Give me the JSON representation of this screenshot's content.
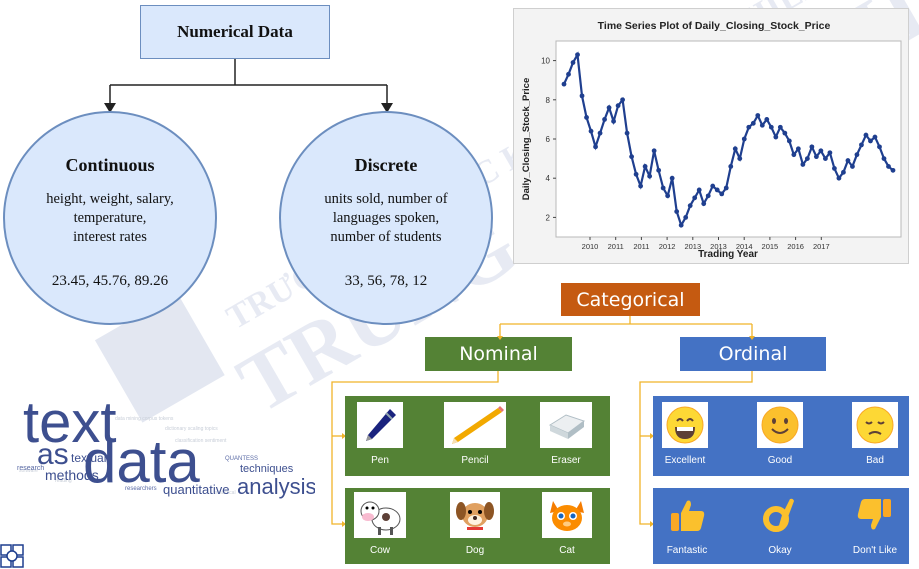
{
  "numerical": {
    "title": "Numerical Data",
    "continuous": {
      "title": "Continuous",
      "description": "height, weight, salary, temperature, interest rates",
      "desc_lines": [
        "height, weight, salary,",
        "temperature,",
        "interest rates"
      ],
      "values": "23.45, 45.76, 89.26"
    },
    "discrete": {
      "title": "Discrete",
      "description": "units sold, number of languages spoken, number of students",
      "desc_lines": [
        "units sold, number of",
        "languages spoken,",
        "number of students"
      ],
      "values": "33, 56, 78, 12"
    }
  },
  "chart_data": {
    "type": "line",
    "title": "Time Series Plot of Daily_Closing_Stock_Price",
    "xlabel": "Trading Year",
    "ylabel": "Daily_Closing_Stock_Price",
    "x_tick_labels": [
      "2010",
      "2011",
      "2011",
      "2012",
      "2013",
      "2013",
      "2014",
      "2015",
      "2016",
      "2017"
    ],
    "y_ticks": [
      2,
      4,
      6,
      8,
      10
    ],
    "ylim": [
      1,
      11
    ],
    "grid": false,
    "marker": "filled-circle",
    "series": [
      {
        "color": "#1f3f8f",
        "values": [
          8.8,
          9.3,
          9.9,
          10.3,
          8.2,
          7.1,
          6.4,
          5.6,
          6.3,
          7.0,
          7.6,
          6.9,
          7.7,
          8.0,
          6.3,
          5.1,
          4.2,
          3.6,
          4.6,
          4.1,
          5.4,
          4.4,
          3.5,
          3.1,
          4.0,
          2.3,
          1.6,
          2.0,
          2.6,
          3.0,
          3.4,
          2.7,
          3.1,
          3.6,
          3.4,
          3.2,
          3.5,
          4.6,
          5.5,
          5.0,
          6.0,
          6.6,
          6.8,
          7.2,
          6.7,
          7.0,
          6.6,
          6.1,
          6.6,
          6.3,
          5.9,
          5.2,
          5.5,
          4.7,
          5.0,
          5.6,
          5.1,
          5.4,
          5.0,
          5.3,
          4.5,
          4.0,
          4.3,
          4.9,
          4.6,
          5.2,
          5.7,
          6.2,
          5.9,
          6.1,
          5.6,
          5.0,
          4.6,
          4.4
        ]
      }
    ]
  },
  "watermark": "TRƯỜNG ĐẠI HỌC KHOA HỌC TỰ NHIÊN TRUNG TÂM TIN HỌC",
  "categorical": {
    "title": "Categorical",
    "nominal": {
      "title": "Nominal",
      "row1": [
        {
          "label": "Pen",
          "icon": "pen-icon"
        },
        {
          "label": "Pencil",
          "icon": "pencil-icon"
        },
        {
          "label": "Eraser",
          "icon": "eraser-icon"
        }
      ],
      "row2": [
        {
          "label": "Cow",
          "icon": "cow-icon"
        },
        {
          "label": "Dog",
          "icon": "dog-icon"
        },
        {
          "label": "Cat",
          "icon": "cat-icon"
        }
      ]
    },
    "ordinal": {
      "title": "Ordinal",
      "row1": [
        {
          "label": "Excellent",
          "icon": "grinning-face-icon"
        },
        {
          "label": "Good",
          "icon": "smiling-face-icon"
        },
        {
          "label": "Bad",
          "icon": "pensive-face-icon"
        }
      ],
      "row2": [
        {
          "label": "Fantastic",
          "icon": "thumbs-up-icon"
        },
        {
          "label": "Okay",
          "icon": "ok-hand-icon"
        },
        {
          "label": "Don't Like",
          "icon": "thumbs-down-icon"
        }
      ]
    }
  },
  "text_data": {
    "words": [
      "text",
      "as",
      "data",
      "textual",
      "methods",
      "research",
      "researchers",
      "techniques",
      "QUANTESS",
      "quantitative",
      "analysis"
    ]
  },
  "colors": {
    "numerical_fill": "#dae8fc",
    "numerical_border": "#6c8ebf",
    "categorical": "#c55a11",
    "nominal": "#548235",
    "ordinal": "#4472c4",
    "connector": "#f0b429",
    "text_dark": "#2b3a67",
    "series": "#1f3f8f"
  }
}
